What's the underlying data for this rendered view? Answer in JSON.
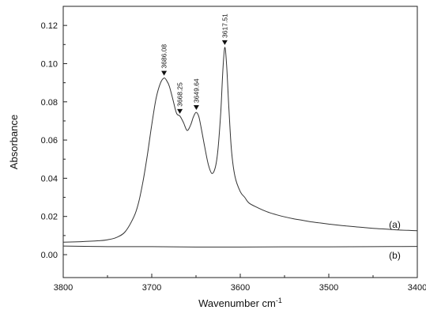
{
  "chart_data": {
    "type": "line",
    "xlabel": "Wavenumber cm",
    "xlabel_sup": "-1",
    "ylabel": "Absorbance",
    "xlim": [
      3800,
      3400
    ],
    "ylim": [
      -0.012,
      0.13
    ],
    "x_ticks": [
      3800,
      3700,
      3600,
      3500,
      3400
    ],
    "x_tick_labels": [
      "3800",
      "3700",
      "3600",
      "3500",
      "3400"
    ],
    "y_ticks": [
      0.0,
      0.02,
      0.04,
      0.06,
      0.08,
      0.1,
      0.12
    ],
    "y_tick_labels": [
      "0.00",
      "0.02",
      "0.04",
      "0.06",
      "0.08",
      "0.10",
      "0.12"
    ],
    "series": [
      {
        "name": "(a)",
        "x": [
          3800,
          3780,
          3760,
          3750,
          3740,
          3730,
          3720,
          3715,
          3710,
          3705,
          3700,
          3695,
          3690,
          3686,
          3683,
          3680,
          3676,
          3672,
          3668,
          3664,
          3660,
          3656,
          3653,
          3650,
          3647,
          3644,
          3640,
          3636,
          3632,
          3628,
          3625,
          3622,
          3619.5,
          3617.5,
          3615.5,
          3613,
          3610,
          3606,
          3600,
          3595,
          3590,
          3580,
          3570,
          3560,
          3550,
          3540,
          3530,
          3520,
          3510,
          3500,
          3490,
          3480,
          3470,
          3460,
          3450,
          3440,
          3430,
          3420,
          3410,
          3400
        ],
        "values": [
          0.0065,
          0.0068,
          0.0073,
          0.0078,
          0.009,
          0.012,
          0.02,
          0.027,
          0.038,
          0.052,
          0.068,
          0.082,
          0.09,
          0.0925,
          0.091,
          0.088,
          0.081,
          0.074,
          0.0725,
          0.069,
          0.065,
          0.068,
          0.072,
          0.0745,
          0.0725,
          0.066,
          0.056,
          0.047,
          0.0425,
          0.046,
          0.056,
          0.075,
          0.098,
          0.1085,
          0.1,
          0.078,
          0.055,
          0.041,
          0.033,
          0.03,
          0.027,
          0.0245,
          0.0225,
          0.021,
          0.0198,
          0.0188,
          0.018,
          0.0172,
          0.0166,
          0.016,
          0.0155,
          0.015,
          0.0146,
          0.0142,
          0.0138,
          0.0135,
          0.0132,
          0.0129,
          0.0127,
          0.0125
        ]
      },
      {
        "name": "(b)",
        "x": [
          3800,
          3750,
          3700,
          3650,
          3600,
          3550,
          3500,
          3450,
          3400
        ],
        "values": [
          0.0045,
          0.0042,
          0.0042,
          0.004,
          0.004,
          0.0041,
          0.0041,
          0.0042,
          0.0043
        ]
      }
    ],
    "peaks": [
      {
        "label": "3686.08",
        "x": 3686.08,
        "y": 0.0925
      },
      {
        "label": "3668.25",
        "x": 3668.25,
        "y": 0.0725
      },
      {
        "label": "3649.64",
        "x": 3649.64,
        "y": 0.0745
      },
      {
        "label": "3617.51",
        "x": 3617.51,
        "y": 0.1085
      }
    ],
    "curve_labels": [
      {
        "label": "(a)",
        "x": 3432,
        "y": 0.0157
      },
      {
        "label": "(b)",
        "x": 3432,
        "y": -0.0005
      }
    ],
    "grid": false
  }
}
